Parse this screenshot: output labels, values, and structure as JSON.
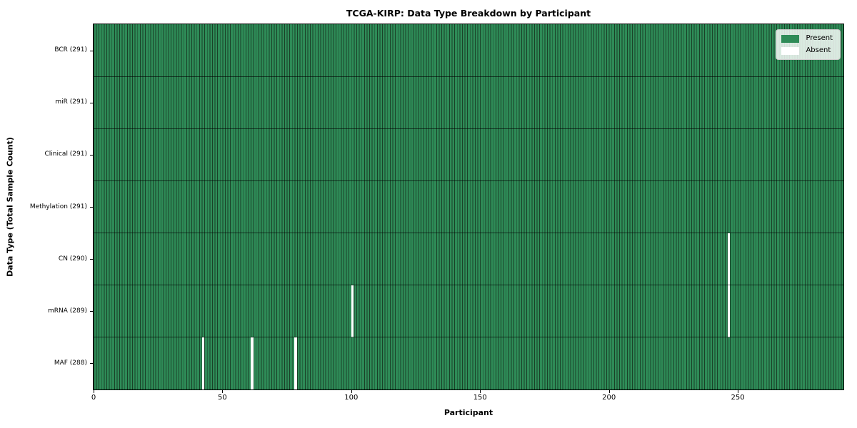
{
  "chart_data": {
    "type": "heatmap",
    "title": "TCGA-KIRP: Data Type Breakdown by Participant",
    "xlabel": "Participant",
    "ylabel": "Data Type (Total Sample Count)",
    "n_participants": 291,
    "x_ticks": [
      0,
      50,
      100,
      150,
      200,
      250
    ],
    "grid": "row-dividers",
    "colors": {
      "present": "#2e8b57",
      "absent": "#ffffff",
      "bar_edge": "#1a4128",
      "row_divider": "rgba(0,0,0,0.62)"
    },
    "legend": {
      "position": "upper right",
      "entries": [
        {
          "label": "Present",
          "color": "#2e8b57"
        },
        {
          "label": "Absent",
          "color": "#ffffff"
        }
      ]
    },
    "rows": [
      {
        "data_type": "BCR",
        "total_samples": 291,
        "label": "BCR (291)",
        "absent_participants": []
      },
      {
        "data_type": "miR",
        "total_samples": 291,
        "label": "miR (291)",
        "absent_participants": []
      },
      {
        "data_type": "Clinical",
        "total_samples": 291,
        "label": "Clinical (291)",
        "absent_participants": []
      },
      {
        "data_type": "Methylation",
        "total_samples": 291,
        "label": "Methylation (291)",
        "absent_participants": []
      },
      {
        "data_type": "CN",
        "total_samples": 290,
        "label": "CN (290)",
        "absent_participants": [
          246
        ]
      },
      {
        "data_type": "mRNA",
        "total_samples": 289,
        "label": "mRNA (289)",
        "absent_participants": [
          100,
          246
        ]
      },
      {
        "data_type": "MAF",
        "total_samples": 288,
        "label": "MAF (288)",
        "absent_participants": [
          42,
          61,
          78
        ]
      }
    ]
  }
}
